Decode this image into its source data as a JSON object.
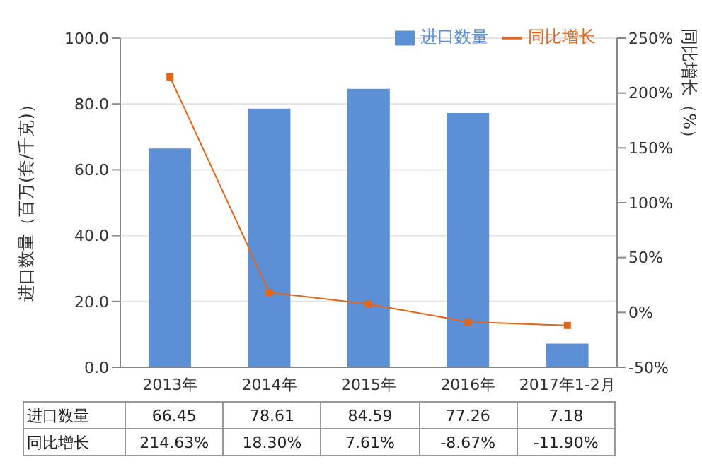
{
  "chart_data": {
    "type": "bar",
    "categories": [
      "2013年",
      "2014年",
      "2015年",
      "2016年",
      "2017年1-2月"
    ],
    "series": [
      {
        "name": "进口数量",
        "color": "#5b8fd6",
        "values": [
          66.45,
          78.61,
          84.59,
          77.26,
          7.18
        ],
        "value_labels": [
          "66.45",
          "78.61",
          "84.59",
          "77.26",
          "7.18"
        ]
      },
      {
        "name": "同比增长",
        "type": "line",
        "axis": "y2",
        "color": "#e0661b",
        "values": [
          214.63,
          18.3,
          7.61,
          -8.67,
          -11.9
        ],
        "value_labels": [
          "214.63%",
          "18.30%",
          "7.61%",
          "-8.67%",
          "-11.90%"
        ]
      }
    ],
    "ylabel": "进口数量（百万(套/千克)）",
    "y2label": "同比增长（%）",
    "ylim": [
      0,
      100
    ],
    "yticks": [
      {
        "value": 0,
        "label": "0.0"
      },
      {
        "value": 20,
        "label": "20.0"
      },
      {
        "value": 40,
        "label": "40.0"
      },
      {
        "value": 60,
        "label": "60.0"
      },
      {
        "value": 80,
        "label": "80.0"
      },
      {
        "value": 100,
        "label": "100.0"
      }
    ],
    "y2lim": [
      -50,
      250
    ],
    "y2ticks": [
      {
        "value": -50,
        "label": "-50%"
      },
      {
        "value": 0,
        "label": "0%"
      },
      {
        "value": 50,
        "label": "50%"
      },
      {
        "value": 100,
        "label": "100%"
      },
      {
        "value": 150,
        "label": "150%"
      },
      {
        "value": 200,
        "label": "200%"
      },
      {
        "value": 250,
        "label": "250%"
      }
    ],
    "grid": "y",
    "legend": "top right",
    "marker": "square",
    "line_style": "solid"
  }
}
